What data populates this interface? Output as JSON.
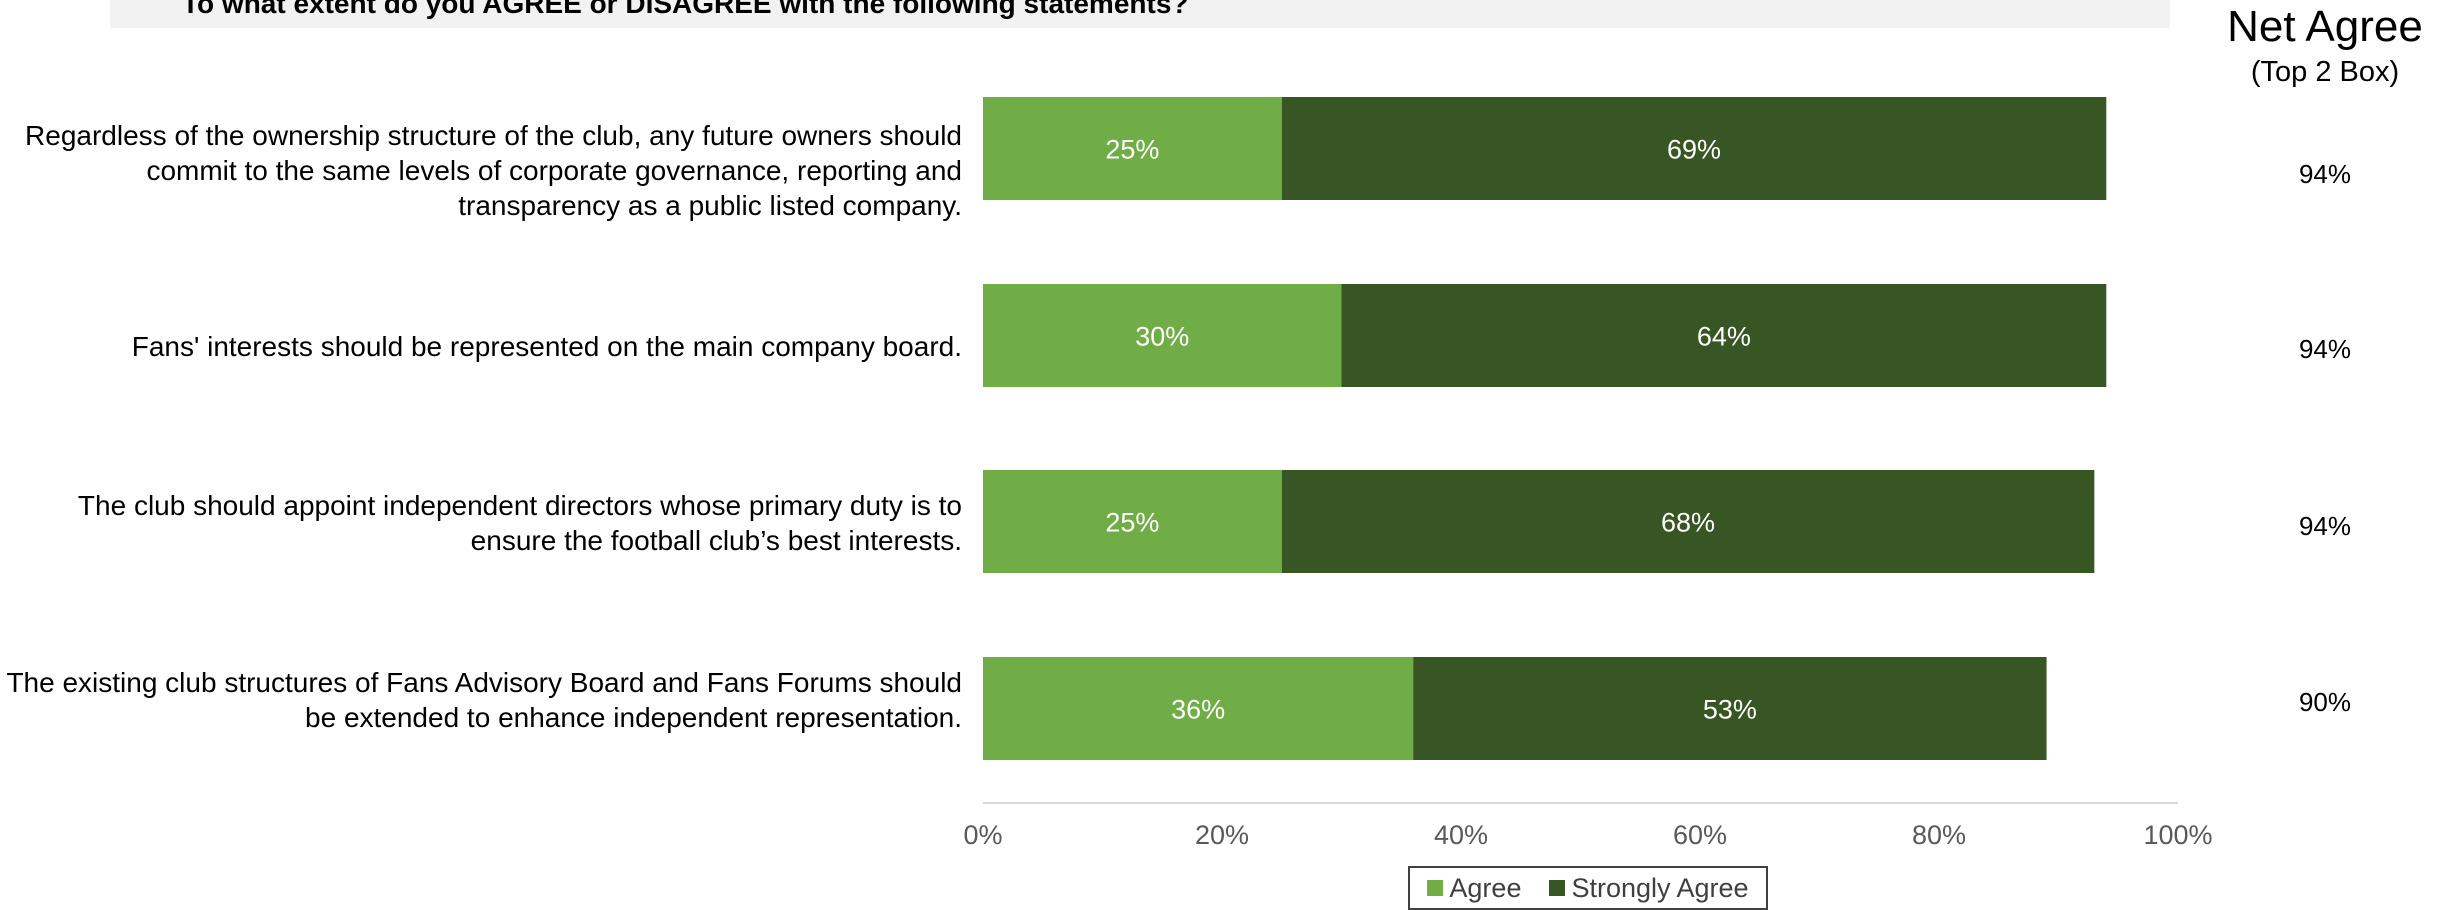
{
  "question": "To what extent do you AGREE or DISAGREE with the following statements?",
  "net_header": {
    "title": "Net Agree",
    "subtitle": "(Top 2 Box)"
  },
  "chart_data": {
    "type": "bar",
    "orientation": "horizontal",
    "stacked": true,
    "categories": [
      "Regardless of the ownership structure of the club, any future owners should commit to the same levels of corporate governance, reporting and transparency as a public listed company.",
      "Fans' interests should be represented on the main company board.",
      "The club should appoint independent directors whose primary duty is to ensure the football club’s best interests.",
      "The existing club structures of Fans Advisory Board and Fans Forums should be extended to enhance independent representation."
    ],
    "series": [
      {
        "name": "Agree",
        "color": "#70ad47",
        "values": [
          25,
          30,
          25,
          36
        ],
        "value_labels": [
          "25%",
          "30%",
          "25%",
          "36%"
        ]
      },
      {
        "name": "Strongly Agree",
        "color": "#375623",
        "values": [
          69,
          64,
          68,
          53
        ],
        "value_labels": [
          "69%",
          "64%",
          "68%",
          "53%"
        ]
      }
    ],
    "net_agree": [
      "94%",
      "94%",
      "94%",
      "90%"
    ],
    "xlim": [
      0,
      100
    ],
    "x_ticks": [
      0,
      20,
      40,
      60,
      80,
      100
    ],
    "x_tick_labels": [
      "0%",
      "20%",
      "40%",
      "60%",
      "80%",
      "100%"
    ],
    "grid": false,
    "legend_position": "bottom-center",
    "axis_color": "#d9d9d9",
    "tick_label_color": "#595959",
    "bar_label_color": "#ffffff"
  }
}
